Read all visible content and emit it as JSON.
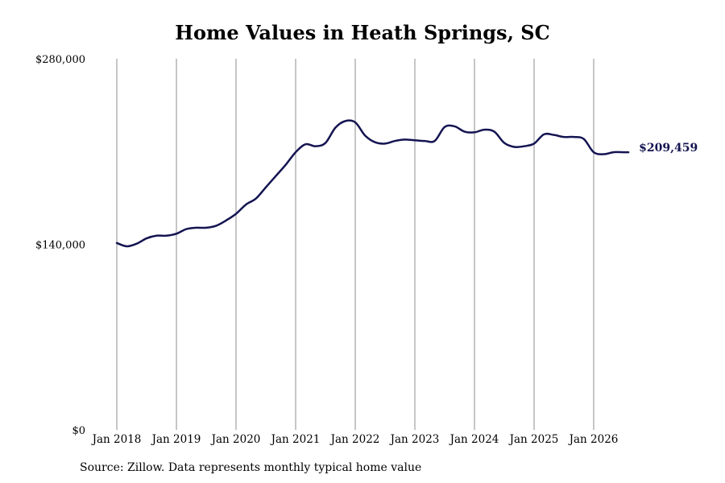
{
  "title": "Home Values in Heath Springs, SC",
  "source": "Source: Zillow. Data represents monthly typical home value",
  "chart_data": {
    "type": "line",
    "title": "Home Values in Heath Springs, SC",
    "xlabel": "",
    "ylabel": "",
    "ylim": [
      0,
      280000
    ],
    "y_ticks": [
      0,
      140000,
      280000
    ],
    "y_tick_labels": [
      "$0",
      "$140,000",
      "$280,000"
    ],
    "x_tick_labels": [
      "Jan 2018",
      "Jan 2019",
      "Jan 2020",
      "Jan 2021",
      "Jan 2022",
      "Jan 2023",
      "Jan 2024",
      "Jan 2025",
      "Jan 2026"
    ],
    "grid": "vertical",
    "line_color": "#141452",
    "end_label": "$209,459",
    "series": [
      {
        "x": [
          "2018-01",
          "2018-03",
          "2018-05",
          "2018-07",
          "2018-09",
          "2018-11",
          "2019-01",
          "2019-03",
          "2019-05",
          "2019-07",
          "2019-09",
          "2019-11",
          "2020-01",
          "2020-03",
          "2020-05",
          "2020-07",
          "2020-09",
          "2020-11",
          "2021-01",
          "2021-03",
          "2021-05",
          "2021-07",
          "2021-09",
          "2021-11",
          "2022-01",
          "2022-03",
          "2022-05",
          "2022-07",
          "2022-09",
          "2022-11",
          "2023-01",
          "2023-03",
          "2023-05",
          "2023-07",
          "2023-09",
          "2023-11",
          "2024-01",
          "2024-03",
          "2024-05",
          "2024-07",
          "2024-09",
          "2024-11",
          "2025-01",
          "2025-03",
          "2025-05",
          "2025-07",
          "2025-09",
          "2025-11",
          "2026-01",
          "2026-03",
          "2026-05",
          "2026-07",
          "2026-08"
        ],
        "values": [
          141000,
          138500,
          140500,
          144500,
          146500,
          146500,
          148000,
          151500,
          152500,
          152500,
          154000,
          158000,
          163000,
          170000,
          174500,
          183000,
          191500,
          200000,
          209500,
          215500,
          214000,
          216500,
          228000,
          233000,
          232000,
          222000,
          217000,
          216000,
          218000,
          219000,
          218500,
          218000,
          218000,
          228500,
          229000,
          225000,
          224500,
          226500,
          225000,
          216500,
          213500,
          214000,
          216000,
          223000,
          222500,
          221000,
          221000,
          219500,
          209459,
          208000,
          209500,
          209500,
          209459
        ]
      }
    ]
  }
}
